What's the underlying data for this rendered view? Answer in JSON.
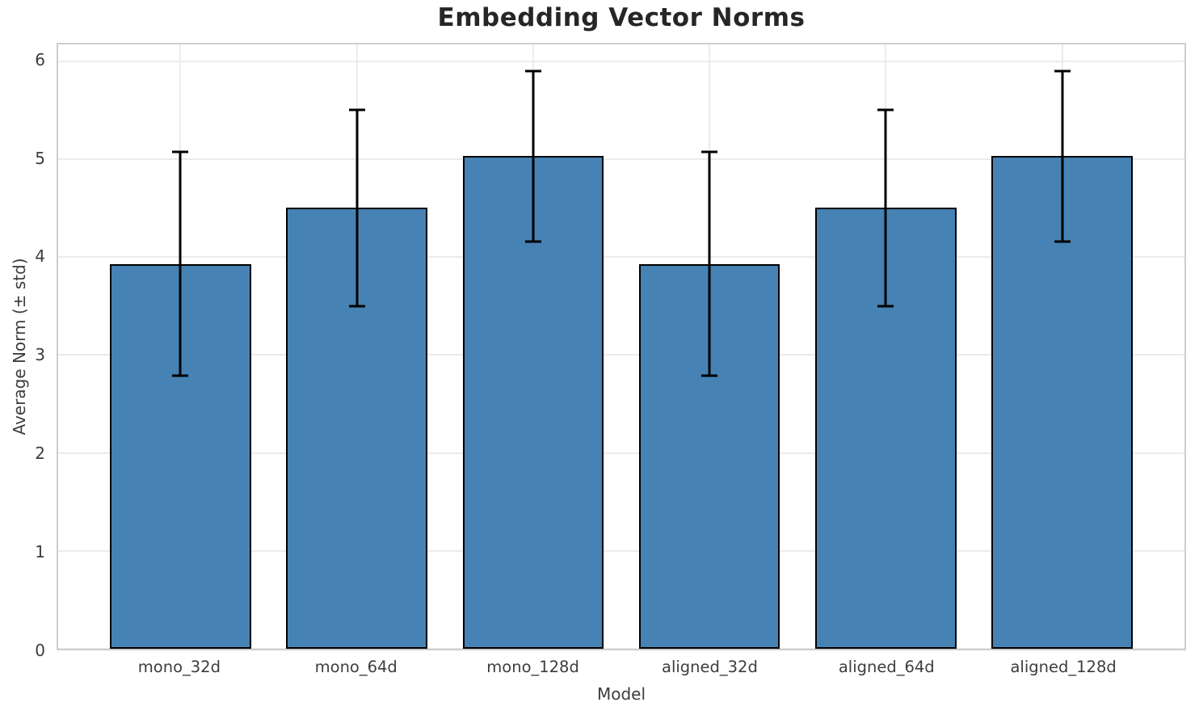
{
  "chart_data": {
    "type": "bar",
    "title": "Embedding Vector Norms",
    "xlabel": "Model",
    "ylabel": "Average Norm (± std)",
    "categories": [
      "mono_32d",
      "mono_64d",
      "mono_128d",
      "aligned_32d",
      "aligned_64d",
      "aligned_128d"
    ],
    "values": [
      3.93,
      4.5,
      5.03,
      3.93,
      4.5,
      5.03
    ],
    "errors": [
      1.14,
      1.0,
      0.87,
      1.14,
      1.0,
      0.87
    ],
    "yticks": [
      0,
      1,
      2,
      3,
      4,
      5,
      6
    ],
    "ylim": [
      0,
      6.17
    ],
    "xlim": [
      -0.694,
      5.694
    ],
    "bar_width_units": 0.8,
    "legend": "none",
    "grid": "on",
    "bar_color": "#4682B4",
    "bar_edge_color": "#000000",
    "error_color": "#000000",
    "grid_color": "#ebebeb",
    "spine_color": "#cdcdcd",
    "background_color": "#ffffff",
    "title_color": "#262626",
    "tick_color": "#3d3d3d"
  }
}
